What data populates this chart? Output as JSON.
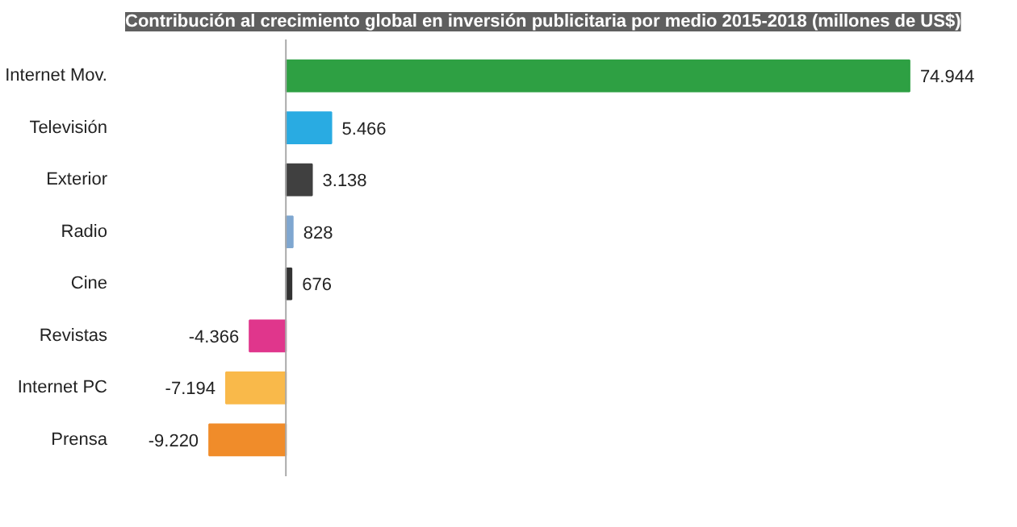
{
  "chart_data": {
    "type": "bar",
    "orientation": "horizontal",
    "title": "Contribución al crecimiento global en inversión publicitaria por medio 2015-2018 (millones de US$)",
    "categories": [
      "Internet Mov.",
      "Televisión",
      "Exterior",
      "Radio",
      "Cine",
      "Revistas",
      "Internet PC",
      "Prensa"
    ],
    "values": [
      74944,
      5466,
      3138,
      828,
      676,
      -4366,
      -7194,
      -9220
    ],
    "value_labels": [
      "74.944",
      "5.466",
      "3.138",
      "828",
      "676",
      "-4.366",
      "-7.194",
      "-9.220"
    ],
    "colors": [
      "#2ea043",
      "#29abe2",
      "#404040",
      "#7fa7d0",
      "#333333",
      "#e0368c",
      "#f9b94a",
      "#f08c2a"
    ],
    "grid": false
  }
}
